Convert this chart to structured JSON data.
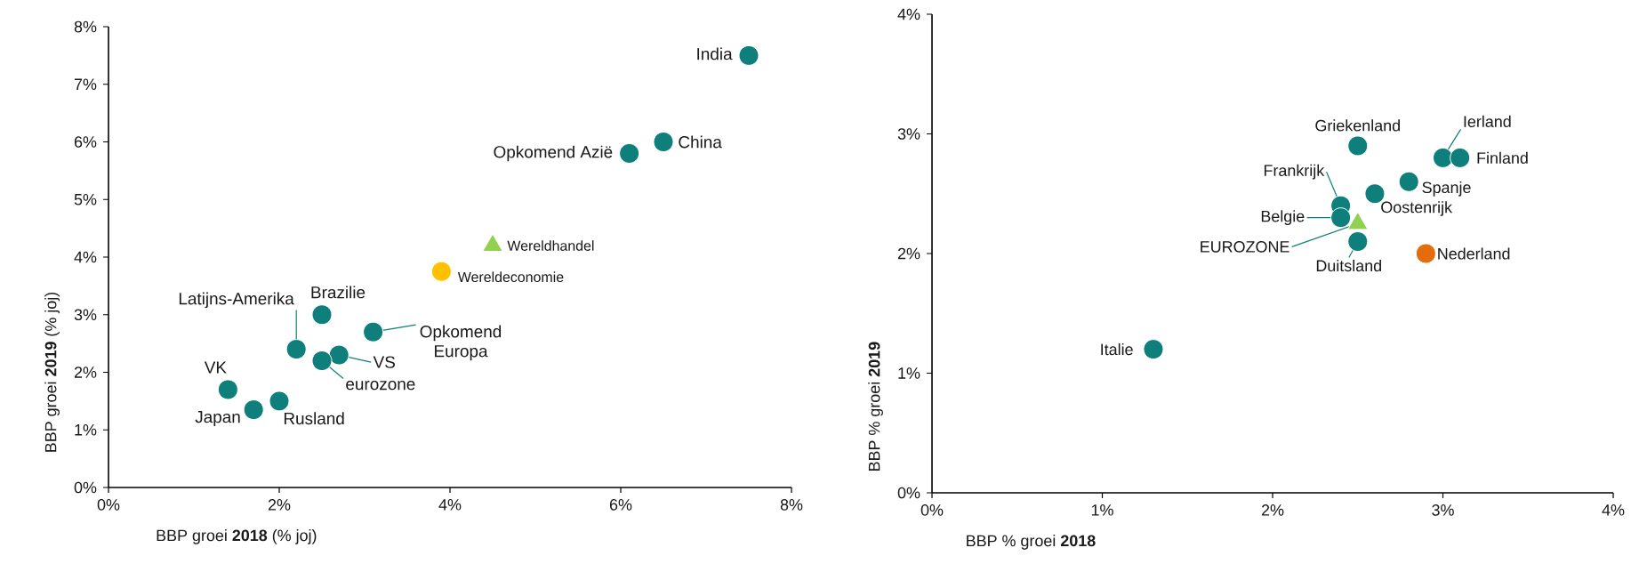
{
  "chart_data": [
    {
      "type": "scatter",
      "xlabel": "BBP groei **2018** (% joj)",
      "ylabel": "BBP groei **2019** (% joj)",
      "xlim": [
        0,
        8
      ],
      "ylim": [
        0,
        8
      ],
      "xticks": [
        {
          "value": 0,
          "label": "0%"
        },
        {
          "value": 2,
          "label": "2%"
        },
        {
          "value": 4,
          "label": "4%"
        },
        {
          "value": 6,
          "label": "6%"
        },
        {
          "value": 8,
          "label": "8%"
        }
      ],
      "yticks": [
        {
          "value": 0,
          "label": "0%"
        },
        {
          "value": 1,
          "label": "1%"
        },
        {
          "value": 2,
          "label": "2%"
        },
        {
          "value": 3,
          "label": "3%"
        },
        {
          "value": 4,
          "label": "4%"
        },
        {
          "value": 5,
          "label": "5%"
        },
        {
          "value": 6,
          "label": "6%"
        },
        {
          "value": 7,
          "label": "7%"
        },
        {
          "value": 8,
          "label": "8%"
        }
      ],
      "series": [
        {
          "color": "#0e7f7a",
          "marker": "circle",
          "x": [
            7.5,
            6.5,
            6.1,
            2.5,
            3.1,
            2.2,
            2.7,
            2.5,
            1.4,
            1.7,
            2.0
          ],
          "values": [
            7.5,
            6.0,
            5.8,
            3.0,
            2.7,
            2.4,
            2.3,
            2.2,
            1.7,
            1.35,
            1.5
          ]
        },
        {
          "color": "#92d050",
          "marker": "triangle",
          "x": [
            4.5
          ],
          "values": [
            4.2
          ]
        },
        {
          "color": "#ffc000",
          "marker": "circle",
          "x": [
            3.9
          ],
          "values": [
            3.75
          ]
        }
      ],
      "annotations": [
        {
          "text": "India",
          "x": 7.5,
          "y": 7.5
        },
        {
          "text": "China",
          "x": 6.5,
          "y": 6.0
        },
        {
          "text": "Opkomend Azië",
          "x": 6.1,
          "y": 5.8
        },
        {
          "text": "Wereldhandel",
          "x": 4.5,
          "y": 4.2
        },
        {
          "text": "Wereldeconomie",
          "x": 3.9,
          "y": 3.75
        },
        {
          "text": "Brazilie",
          "x": 2.5,
          "y": 3.0
        },
        {
          "text": "Opkomend Europa",
          "x": 3.1,
          "y": 2.7
        },
        {
          "text": "Latijns-Amerika",
          "x": 2.2,
          "y": 2.4
        },
        {
          "text": "VS",
          "x": 2.7,
          "y": 2.3
        },
        {
          "text": "eurozone",
          "x": 2.5,
          "y": 2.2
        },
        {
          "text": "VK",
          "x": 1.4,
          "y": 1.7
        },
        {
          "text": "Japan",
          "x": 1.7,
          "y": 1.35
        },
        {
          "text": "Rusland",
          "x": 2.0,
          "y": 1.5
        }
      ]
    },
    {
      "type": "scatter",
      "xlabel": "BBP % groei **2018**",
      "ylabel": "BBP % groei **2019**",
      "xlim": [
        0,
        4
      ],
      "ylim": [
        0,
        4
      ],
      "xticks": [
        {
          "value": 0,
          "label": "0%"
        },
        {
          "value": 1,
          "label": "1%"
        },
        {
          "value": 2,
          "label": "2%"
        },
        {
          "value": 3,
          "label": "3%"
        },
        {
          "value": 4,
          "label": "4%"
        }
      ],
      "yticks": [
        {
          "value": 0,
          "label": "0%"
        },
        {
          "value": 1,
          "label": "1%"
        },
        {
          "value": 2,
          "label": "2%"
        },
        {
          "value": 3,
          "label": "3%"
        },
        {
          "value": 4,
          "label": "4%"
        }
      ],
      "series": [
        {
          "color": "#0e7f7a",
          "marker": "circle",
          "x": [
            2.5,
            3.0,
            3.1,
            2.8,
            2.6,
            2.4,
            2.4,
            2.5,
            1.3
          ],
          "values": [
            2.9,
            2.8,
            2.8,
            2.6,
            2.5,
            2.4,
            2.3,
            2.1,
            1.2
          ]
        },
        {
          "color": "#92d050",
          "marker": "triangle",
          "x": [
            2.5
          ],
          "values": [
            2.25
          ]
        },
        {
          "color": "#e46c0a",
          "marker": "circle",
          "x": [
            2.9
          ],
          "values": [
            2.0
          ]
        }
      ],
      "annotations": [
        {
          "text": "Griekenland",
          "x": 2.5,
          "y": 2.9
        },
        {
          "text": "Ierland",
          "x": 3.0,
          "y": 2.8
        },
        {
          "text": "Finland",
          "x": 3.1,
          "y": 2.8
        },
        {
          "text": "Spanje",
          "x": 2.8,
          "y": 2.6
        },
        {
          "text": "Oostenrijk",
          "x": 2.6,
          "y": 2.5
        },
        {
          "text": "Frankrijk",
          "x": 2.4,
          "y": 2.4
        },
        {
          "text": "Belgie",
          "x": 2.4,
          "y": 2.3
        },
        {
          "text": "EUROZONE",
          "x": 2.5,
          "y": 2.25
        },
        {
          "text": "Duitsland",
          "x": 2.5,
          "y": 2.1
        },
        {
          "text": "Nederland",
          "x": 2.9,
          "y": 2.0
        },
        {
          "text": "Italie",
          "x": 1.3,
          "y": 1.2
        }
      ]
    }
  ]
}
